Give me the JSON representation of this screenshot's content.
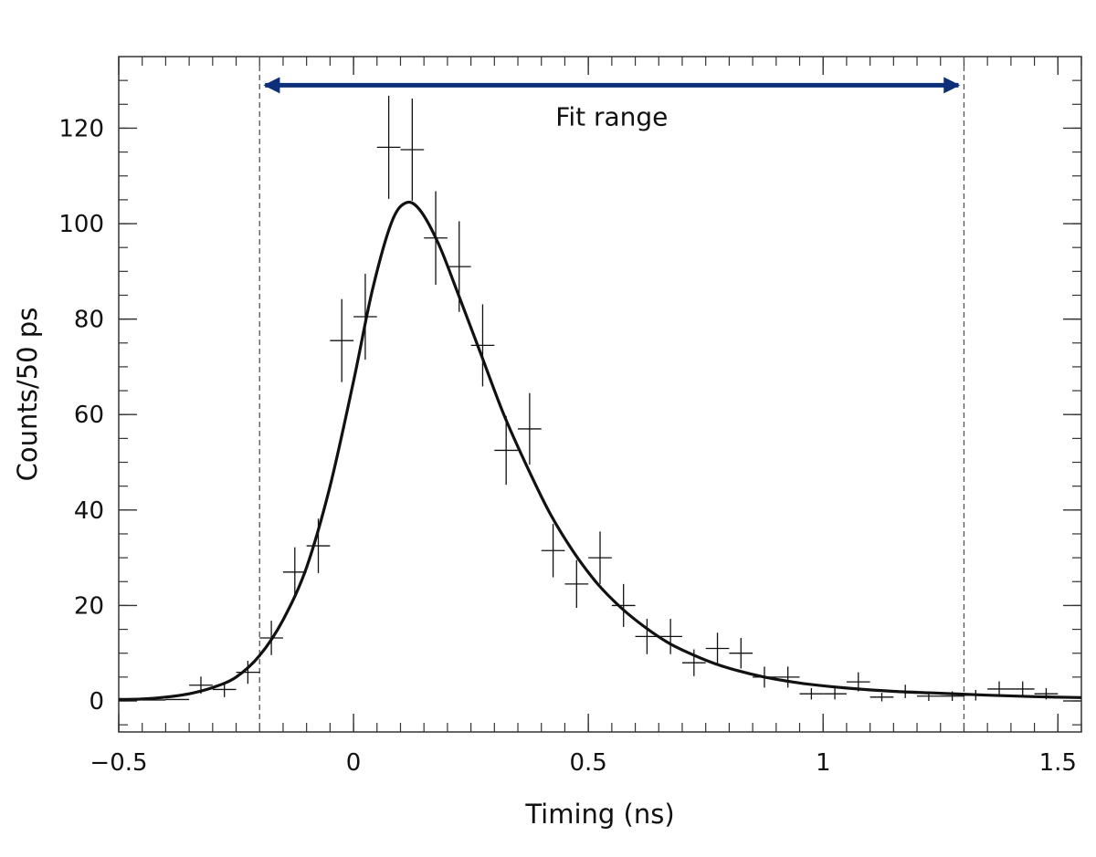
{
  "chart_data": {
    "type": "scatter",
    "xlabel": "Timing (ns)",
    "ylabel": "Counts/50 ps",
    "xlim": [
      -0.5,
      1.55
    ],
    "ylim": [
      -6.5,
      135
    ],
    "x_ticks": [
      -0.5,
      0,
      0.5,
      1,
      1.5
    ],
    "x_tick_labels": [
      "−0.5",
      "0",
      "0.5",
      "1",
      "1.5"
    ],
    "y_ticks": [
      0,
      20,
      40,
      60,
      80,
      100,
      120
    ],
    "y_tick_labels": [
      "0",
      "20",
      "40",
      "60",
      "80",
      "100",
      "120"
    ],
    "bin_width": 0.05,
    "points": [
      {
        "x": -0.475,
        "y": 0.3,
        "err": 0
      },
      {
        "x": -0.425,
        "y": 0.2,
        "err": 0
      },
      {
        "x": -0.375,
        "y": 0.3,
        "err": 0
      },
      {
        "x": -0.325,
        "y": 3.3,
        "err": 1.8
      },
      {
        "x": -0.275,
        "y": 2.4,
        "err": 1.6
      },
      {
        "x": -0.225,
        "y": 6.0,
        "err": 2.4
      },
      {
        "x": -0.175,
        "y": 13.2,
        "err": 3.6
      },
      {
        "x": -0.125,
        "y": 27.0,
        "err": 5.2
      },
      {
        "x": -0.075,
        "y": 32.5,
        "err": 5.7
      },
      {
        "x": -0.025,
        "y": 75.5,
        "err": 8.7
      },
      {
        "x": 0.025,
        "y": 80.5,
        "err": 9.0
      },
      {
        "x": 0.075,
        "y": 116.0,
        "err": 10.8
      },
      {
        "x": 0.125,
        "y": 115.5,
        "err": 10.7
      },
      {
        "x": 0.175,
        "y": 97.0,
        "err": 9.8
      },
      {
        "x": 0.225,
        "y": 91.0,
        "err": 9.5
      },
      {
        "x": 0.275,
        "y": 74.5,
        "err": 8.6
      },
      {
        "x": 0.325,
        "y": 52.5,
        "err": 7.2
      },
      {
        "x": 0.375,
        "y": 57.0,
        "err": 7.5
      },
      {
        "x": 0.425,
        "y": 31.5,
        "err": 5.6
      },
      {
        "x": 0.475,
        "y": 24.5,
        "err": 5.0
      },
      {
        "x": 0.525,
        "y": 30.0,
        "err": 5.5
      },
      {
        "x": 0.575,
        "y": 20.0,
        "err": 4.5
      },
      {
        "x": 0.625,
        "y": 13.5,
        "err": 3.7
      },
      {
        "x": 0.675,
        "y": 13.5,
        "err": 3.7
      },
      {
        "x": 0.725,
        "y": 8.0,
        "err": 2.8
      },
      {
        "x": 0.775,
        "y": 11.0,
        "err": 3.3
      },
      {
        "x": 0.825,
        "y": 10.0,
        "err": 3.2
      },
      {
        "x": 0.875,
        "y": 5.0,
        "err": 2.2
      },
      {
        "x": 0.925,
        "y": 5.0,
        "err": 2.2
      },
      {
        "x": 0.975,
        "y": 1.5,
        "err": 1.2
      },
      {
        "x": 1.025,
        "y": 1.5,
        "err": 1.2
      },
      {
        "x": 1.075,
        "y": 4.0,
        "err": 2.0
      },
      {
        "x": 1.125,
        "y": 0.8,
        "err": 0.9
      },
      {
        "x": 1.175,
        "y": 2.0,
        "err": 1.4
      },
      {
        "x": 1.225,
        "y": 1.0,
        "err": 1.0
      },
      {
        "x": 1.275,
        "y": 1.0,
        "err": 1.0
      },
      {
        "x": 1.325,
        "y": 1.2,
        "err": 1.1
      },
      {
        "x": 1.375,
        "y": 2.5,
        "err": 1.6
      },
      {
        "x": 1.425,
        "y": 2.5,
        "err": 1.6
      },
      {
        "x": 1.475,
        "y": 1.5,
        "err": 1.2
      }
    ],
    "fit_curve": [
      [
        -0.5,
        0.3
      ],
      [
        -0.45,
        0.4
      ],
      [
        -0.4,
        0.8
      ],
      [
        -0.35,
        1.5
      ],
      [
        -0.3,
        2.8
      ],
      [
        -0.25,
        5.0
      ],
      [
        -0.2,
        9.5
      ],
      [
        -0.15,
        17
      ],
      [
        -0.1,
        28
      ],
      [
        -0.05,
        45
      ],
      [
        0.0,
        67
      ],
      [
        0.04,
        86
      ],
      [
        0.08,
        100
      ],
      [
        0.11,
        104.3
      ],
      [
        0.14,
        103
      ],
      [
        0.18,
        96
      ],
      [
        0.22,
        86
      ],
      [
        0.27,
        73
      ],
      [
        0.32,
        60
      ],
      [
        0.37,
        49
      ],
      [
        0.42,
        39
      ],
      [
        0.47,
        31
      ],
      [
        0.52,
        24.5
      ],
      [
        0.57,
        19.5
      ],
      [
        0.62,
        15.5
      ],
      [
        0.67,
        12.2
      ],
      [
        0.72,
        9.8
      ],
      [
        0.77,
        7.8
      ],
      [
        0.82,
        6.3
      ],
      [
        0.87,
        5.1
      ],
      [
        0.92,
        4.2
      ],
      [
        0.97,
        3.5
      ],
      [
        1.05,
        2.7
      ],
      [
        1.15,
        2.0
      ],
      [
        1.25,
        1.6
      ],
      [
        1.35,
        1.2
      ],
      [
        1.45,
        0.9
      ],
      [
        1.55,
        0.7
      ]
    ],
    "fit_range": [
      -0.2,
      1.3
    ],
    "annotations": [
      {
        "text": "Fit range",
        "arrow_from": -0.2,
        "arrow_to": 1.3,
        "y": 129,
        "color": "#0d2f7a"
      }
    ]
  }
}
